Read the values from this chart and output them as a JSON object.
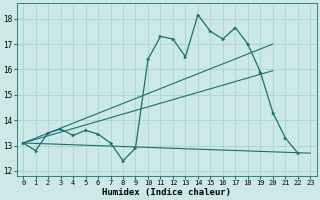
{
  "xlabel": "Humidex (Indice chaleur)",
  "background_color": "#cce9e8",
  "grid_color": "#aad4d2",
  "line_color": "#1a7070",
  "xlim": [
    -0.5,
    23.5
  ],
  "ylim": [
    11.8,
    18.6
  ],
  "yticks": [
    12,
    13,
    14,
    15,
    16,
    17,
    18
  ],
  "xticks": [
    0,
    1,
    2,
    3,
    4,
    5,
    6,
    7,
    8,
    9,
    10,
    11,
    12,
    13,
    14,
    15,
    16,
    17,
    18,
    19,
    20,
    21,
    22,
    23
  ],
  "line1_x": [
    0,
    1,
    2,
    3,
    4,
    5,
    6,
    7,
    8,
    9,
    10,
    11,
    12,
    13,
    14,
    15,
    16,
    17,
    18,
    19,
    20,
    21,
    22
  ],
  "line1_y": [
    13.1,
    12.8,
    13.5,
    13.65,
    13.4,
    13.6,
    13.45,
    13.1,
    12.4,
    12.9,
    16.4,
    17.3,
    17.2,
    16.5,
    18.15,
    17.5,
    17.2,
    17.65,
    17.0,
    15.9,
    14.3,
    13.3,
    12.7
  ],
  "line2_x": [
    0,
    20
  ],
  "line2_y": [
    13.1,
    17.0
  ],
  "line3_x": [
    0,
    20
  ],
  "line3_y": [
    13.1,
    15.95
  ],
  "line4_x": [
    0,
    23
  ],
  "line4_y": [
    13.1,
    12.7
  ]
}
